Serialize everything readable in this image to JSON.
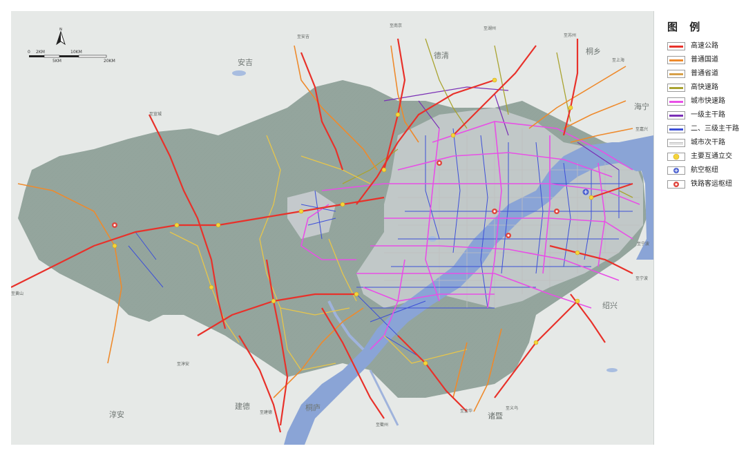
{
  "legend": {
    "title": "图 例",
    "items": [
      {
        "label": "高速公路",
        "color": "#e8312a",
        "symbol": "line"
      },
      {
        "label": "普通国道",
        "color": "#ee8a2c",
        "symbol": "line"
      },
      {
        "label": "普通省道",
        "color": "#d7a049",
        "symbol": "line"
      },
      {
        "label": "高快速路",
        "color": "#a9a330",
        "symbol": "line"
      },
      {
        "label": "城市快速路",
        "color": "#e84fe6",
        "symbol": "line"
      },
      {
        "label": "一级主干路",
        "color": "#7a2fb5",
        "symbol": "line"
      },
      {
        "label": "二、三级主干路",
        "color": "#3c4fd8",
        "symbol": "line"
      },
      {
        "label": "城市次干路",
        "color": "#b8b8b8",
        "symbol": "line"
      },
      {
        "label": "主要互通立交",
        "color": "#f5d43a",
        "symbol": "interchange-icon"
      },
      {
        "label": "航空枢纽",
        "color": "#4a5fd0",
        "symbol": "airport-icon"
      },
      {
        "label": "铁路客运枢纽",
        "color": "#e0443c",
        "symbol": "rail-hub-icon"
      }
    ]
  },
  "scale": {
    "t0": "0",
    "t2": "2KM",
    "t10": "10KM",
    "t5": "5KM",
    "t20": "20KM"
  },
  "north": {
    "label": "N"
  },
  "places": [
    {
      "id": "anji",
      "text": "安吉"
    },
    {
      "id": "deqing",
      "text": "德清"
    },
    {
      "id": "tongxiang",
      "text": "桐乡"
    },
    {
      "id": "haining",
      "text": "海宁"
    },
    {
      "id": "shaoxing",
      "text": "绍兴"
    },
    {
      "id": "zhuji",
      "text": "诸暨"
    },
    {
      "id": "tonglu",
      "text": "桐庐"
    },
    {
      "id": "jiande",
      "text": "建德"
    },
    {
      "id": "chunan",
      "text": "淳安"
    }
  ],
  "exits": [
    {
      "id": "e1",
      "text": "至南京"
    },
    {
      "id": "e2",
      "text": "至湖州"
    },
    {
      "id": "e3",
      "text": "至苏州"
    },
    {
      "id": "e4",
      "text": "至上海"
    },
    {
      "id": "e5",
      "text": "至嘉兴"
    },
    {
      "id": "e6",
      "text": "至宁波"
    },
    {
      "id": "e7",
      "text": "至黄山"
    },
    {
      "id": "e8",
      "text": "至淳安"
    },
    {
      "id": "e9",
      "text": "至建德"
    },
    {
      "id": "e10",
      "text": "至金华"
    },
    {
      "id": "e11",
      "text": "至义乌"
    },
    {
      "id": "e12",
      "text": "至宣城"
    },
    {
      "id": "e13",
      "text": "至衢州"
    },
    {
      "id": "e14",
      "text": "至安吉"
    },
    {
      "id": "e15",
      "text": "至宁波"
    }
  ]
}
